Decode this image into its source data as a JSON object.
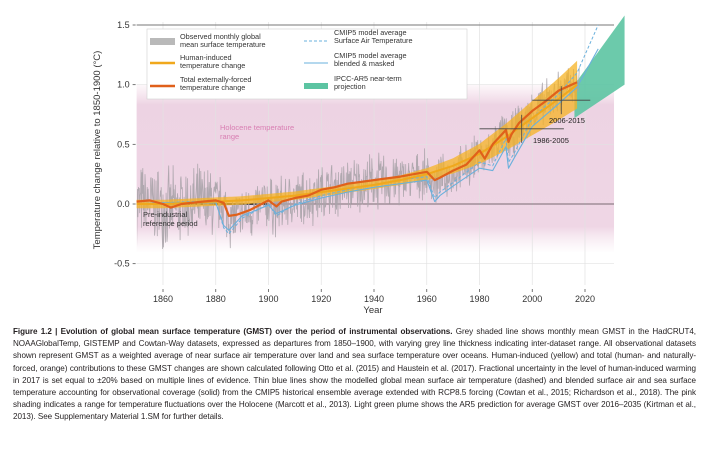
{
  "chart_data": {
    "type": "line",
    "title": "",
    "xlabel": "Year",
    "ylabel": "Temperature change relative to 1850-1900 (°C)",
    "xlim": [
      1850,
      2030
    ],
    "ylim": [
      -0.6,
      1.55
    ],
    "xticks": [
      1860,
      1880,
      1900,
      1920,
      1940,
      1960,
      1980,
      2000,
      2020
    ],
    "yticks": [
      -0.5,
      0.0,
      0.5,
      1.0,
      1.5
    ],
    "ytick_labels": [
      "-0.5",
      "0.0",
      "0.5",
      "1.0",
      "1.5"
    ],
    "grid": true,
    "legend_position": "top",
    "legend": [
      {
        "label_line1": "Observed monthly global",
        "label_line2": "mean surface temperature",
        "color": "#b4b4b4",
        "style": "patch"
      },
      {
        "label_line1": "Human-induced",
        "label_line2": "temperature change",
        "color": "#f0a81c",
        "style": "line"
      },
      {
        "label_line1": "Total externally-forced",
        "label_line2": "temperature change",
        "color": "#e0601a",
        "style": "line"
      },
      {
        "label_line1": "CMIP5 model average",
        "label_line2": "Surface Air Temperature",
        "color": "#6ab0dc",
        "style": "dashed"
      },
      {
        "label_line1": "CMIP5 model average",
        "label_line2": "blended & masked",
        "color": "#6ab0dc",
        "style": "line"
      },
      {
        "label_line1": "IPCC-AR5 near-term",
        "label_line2": "projection",
        "color": "#5cc4a2",
        "style": "patch"
      }
    ],
    "annotations": {
      "holocene_line1": "Holocene temperature",
      "holocene_line2": "range",
      "preindustrial_line1": "Pre-industrial",
      "preindustrial_line2": "reference period",
      "period_2006": "2006-2015",
      "period_1986": "1986-2005"
    },
    "holocene_range": [
      -0.3,
      0.9
    ],
    "preindustrial_period": [
      1850,
      1900
    ],
    "reference_crosses": [
      {
        "label": "1986-2005",
        "year": 1996,
        "value": 0.63
      },
      {
        "label": "2006-2015",
        "year": 2011,
        "value": 0.87
      }
    ],
    "series": [
      {
        "name": "Human-induced temperature change",
        "x": [
          1850,
          1860,
          1870,
          1880,
          1890,
          1900,
          1910,
          1920,
          1930,
          1940,
          1950,
          1960,
          1970,
          1980,
          1990,
          2000,
          2010,
          2017
        ],
        "values": [
          0.0,
          0.0,
          0.01,
          0.02,
          0.03,
          0.05,
          0.07,
          0.1,
          0.13,
          0.16,
          0.2,
          0.25,
          0.32,
          0.42,
          0.56,
          0.72,
          0.88,
          1.0
        ],
        "uncertainty_fraction": 0.2
      },
      {
        "name": "Total externally-forced temperature change",
        "x": [
          1850,
          1855,
          1860,
          1863,
          1867,
          1875,
          1880,
          1883,
          1885,
          1888,
          1893,
          1900,
          1903,
          1905,
          1910,
          1915,
          1920,
          1925,
          1930,
          1940,
          1950,
          1960,
          1963,
          1965,
          1970,
          1975,
          1980,
          1982,
          1985,
          1990,
          1991,
          1992,
          1995,
          2000,
          2005,
          2010,
          2017
        ],
        "values": [
          0.02,
          0.03,
          0.0,
          -0.03,
          0.0,
          0.02,
          0.03,
          0.01,
          -0.1,
          -0.09,
          -0.05,
          0.03,
          -0.02,
          0.02,
          0.05,
          0.07,
          0.12,
          0.14,
          0.17,
          0.2,
          0.23,
          0.27,
          0.2,
          0.22,
          0.28,
          0.33,
          0.45,
          0.38,
          0.5,
          0.62,
          0.52,
          0.58,
          0.68,
          0.78,
          0.86,
          0.95,
          1.02
        ]
      },
      {
        "name": "CMIP5 model average Surface Air Temperature",
        "x": [
          1850,
          1860,
          1870,
          1880,
          1883,
          1885,
          1890,
          1900,
          1903,
          1910,
          1920,
          1930,
          1940,
          1950,
          1960,
          1963,
          1965,
          1970,
          1980,
          1985,
          1990,
          1991,
          1993,
          2000,
          2010,
          2017,
          2020,
          2025
        ],
        "values": [
          0.0,
          0.01,
          0.02,
          0.02,
          -0.2,
          -0.25,
          -0.12,
          0.0,
          -0.1,
          0.0,
          0.07,
          0.12,
          0.16,
          0.2,
          0.23,
          0.05,
          0.1,
          0.18,
          0.35,
          0.32,
          0.55,
          0.35,
          0.42,
          0.72,
          0.92,
          1.1,
          1.25,
          1.5
        ]
      },
      {
        "name": "CMIP5 model average blended & masked",
        "x": [
          1850,
          1860,
          1870,
          1880,
          1883,
          1885,
          1890,
          1900,
          1903,
          1910,
          1920,
          1930,
          1940,
          1950,
          1960,
          1963,
          1965,
          1970,
          1980,
          1985,
          1990,
          1991,
          1993,
          2000,
          2010,
          2017,
          2025
        ],
        "values": [
          0.0,
          0.01,
          0.01,
          0.01,
          -0.18,
          -0.22,
          -0.1,
          -0.01,
          -0.08,
          -0.01,
          0.05,
          0.1,
          0.14,
          0.17,
          0.2,
          0.02,
          0.07,
          0.15,
          0.3,
          0.28,
          0.48,
          0.3,
          0.38,
          0.65,
          0.84,
          0.98,
          1.3
        ]
      },
      {
        "name": "IPCC-AR5 near-term projection",
        "x": [
          2016,
          2035
        ],
        "lower": [
          0.72,
          1.0
        ],
        "upper": [
          1.0,
          1.58
        ]
      },
      {
        "name": "Observed monthly global mean surface temperature",
        "x_range": [
          1850,
          2018
        ],
        "note": "monthly values, approx. range -0.6 to 1.45 °C, oscillating around total forced trend"
      }
    ]
  },
  "caption": {
    "lead": "Figure 1.2 | Evolution of global mean surface temperature (GMST) over the period of instrumental observations.",
    "body": " Grey shaded line shows monthly mean GMST in the HadCRUT4, NOAAGlobalTemp, GISTEMP and Cowtan-Way datasets, expressed as departures from 1850–1900, with varying grey line thickness indicating inter-dataset range. All observational datasets shown represent GMST as a weighted average of near surface air temperature over land and sea surface temperature over oceans. Human-induced (yellow) and total (human- and naturally-forced, orange) contributions to these GMST changes are shown calculated following Otto et al. (2015) and Haustein et al. (2017). Fractional uncertainty in the level of human-induced warming in 2017 is set equal to ±20% based on multiple lines of evidence. Thin blue lines show the modelled global mean surface air temperature (dashed) and blended surface air and sea surface temperature accounting for observational coverage (solid) from the CMIP5 historical ensemble average extended with RCP8.5 forcing (Cowtan et al., 2015; Richardson et al., 2018). The pink shading indicates a range for temperature fluctuations over the Holocene (Marcott et al., 2013). Light green plume shows the AR5 prediction for average GMST over 2016–2035 (Kirtman et al., 2013). See Supplementary Material 1.SM for further details."
  }
}
